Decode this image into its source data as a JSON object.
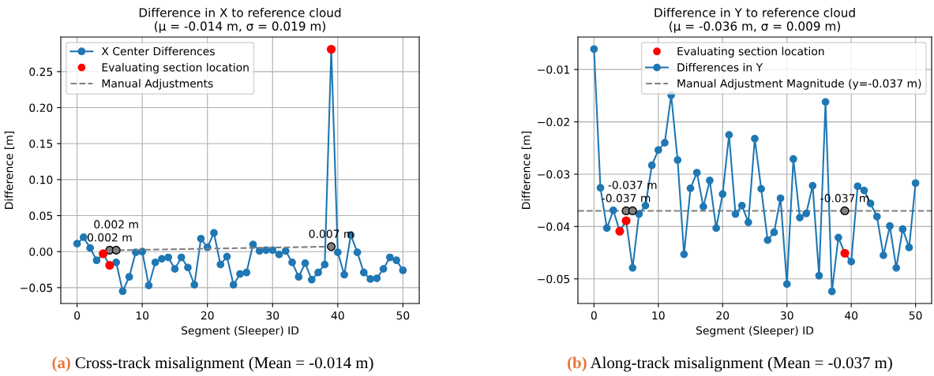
{
  "chart_data": [
    {
      "type": "line",
      "title": "Difference in X to reference cloud",
      "subtitle": "(μ = -0.014 m, σ = 0.019 m)",
      "xlabel": "Segment (Sleeper) ID",
      "ylabel": "Difference [m]",
      "series": [
        {
          "name": "X Center Differences",
          "type": "line",
          "color": "#1f77b4",
          "marker": "circle",
          "line_style": "solid",
          "x": [
            0,
            1,
            2,
            3,
            4,
            5,
            6,
            7,
            8,
            9,
            10,
            11,
            12,
            13,
            14,
            15,
            16,
            17,
            18,
            19,
            20,
            21,
            22,
            23,
            24,
            25,
            26,
            27,
            28,
            29,
            30,
            31,
            32,
            33,
            34,
            35,
            36,
            37,
            38,
            39,
            40,
            41,
            42,
            43,
            44,
            45,
            46,
            47,
            48,
            49,
            50
          ],
          "values": [
            0.011,
            0.02,
            0.005,
            -0.012,
            -0.003,
            -0.019,
            -0.015,
            -0.055,
            -0.035,
            -0.001,
            0.0,
            -0.047,
            -0.015,
            -0.01,
            -0.008,
            -0.024,
            -0.008,
            -0.022,
            -0.046,
            0.018,
            0.006,
            0.026,
            -0.018,
            -0.007,
            -0.046,
            -0.031,
            -0.029,
            0.01,
            0.001,
            0.002,
            0.002,
            -0.004,
            0.001,
            -0.015,
            -0.035,
            -0.016,
            -0.039,
            -0.029,
            -0.018,
            0.281,
            -0.001,
            -0.032,
            0.023,
            -0.001,
            -0.029,
            -0.038,
            -0.037,
            -0.024,
            -0.008,
            -0.012,
            -0.026
          ]
        },
        {
          "name": "Evaluating section location",
          "type": "scatter",
          "color": "#ff0000",
          "marker": "circle",
          "x": [
            4,
            5,
            39
          ],
          "values": [
            -0.003,
            -0.019,
            0.281
          ]
        },
        {
          "name": "Manual Adjustments",
          "type": "line",
          "color": "#808080",
          "marker": "circle",
          "line_style": "dashed",
          "x": [
            5,
            6,
            39
          ],
          "values": [
            0.002,
            0.002,
            0.007
          ]
        }
      ],
      "annotations": [
        {
          "text": "0.002 m",
          "x": 5,
          "y": 0.002
        },
        {
          "text": "0.002 m",
          "x": 6,
          "y": 0.002
        },
        {
          "text": "0.007 m",
          "x": 39,
          "y": 0.007
        },
        "(a)",
        "Cross-track misalignment (Mean = -0.014 m)"
      ],
      "xlim": [
        -2.5,
        52.5
      ],
      "xticks": [
        0,
        10,
        20,
        30,
        40,
        50
      ],
      "ylim": [
        -0.072,
        0.298
      ],
      "yticks": [
        {
          "value": -0.05,
          "label": "−0.05"
        },
        {
          "value": 0,
          "label": "0.00"
        },
        {
          "value": 0.05,
          "label": "0.05"
        },
        {
          "value": 0.1,
          "label": "0.10"
        },
        {
          "value": 0.15,
          "label": "0.15"
        },
        {
          "value": 0.2,
          "label": "0.20"
        },
        {
          "value": 0.25,
          "label": "0.25"
        }
      ],
      "grid": true,
      "legend": "top left"
    },
    {
      "type": "line",
      "title": "Difference in Y to reference cloud",
      "subtitle": "(μ = -0.036 m, σ = 0.009 m)",
      "xlabel": "Segment (Sleeper) ID",
      "ylabel": "Difference [m]",
      "series": [
        {
          "name": "Evaluating section location",
          "type": "scatter",
          "color": "#ff0000",
          "marker": "circle",
          "x": [
            4,
            5,
            39
          ],
          "values": [
            -0.0409,
            -0.0389,
            -0.0451
          ]
        },
        {
          "name": "Differences in Y",
          "type": "line",
          "color": "#1f77b4",
          "marker": "circle",
          "line_style": "solid",
          "x": [
            0,
            1,
            2,
            3,
            4,
            5,
            6,
            7,
            8,
            9,
            10,
            11,
            12,
            13,
            14,
            15,
            16,
            17,
            18,
            19,
            20,
            21,
            22,
            23,
            24,
            25,
            26,
            27,
            28,
            29,
            30,
            31,
            32,
            33,
            34,
            35,
            36,
            37,
            38,
            39,
            40,
            41,
            42,
            43,
            44,
            45,
            46,
            47,
            48,
            49,
            50
          ],
          "values": [
            -0.0061,
            -0.0326,
            -0.0403,
            -0.0369,
            -0.0409,
            -0.0389,
            -0.0479,
            -0.0376,
            -0.036,
            -0.0283,
            -0.0254,
            -0.024,
            -0.0149,
            -0.0273,
            -0.0453,
            -0.0327,
            -0.0297,
            -0.0362,
            -0.0312,
            -0.0403,
            -0.0338,
            -0.0225,
            -0.0376,
            -0.036,
            -0.0392,
            -0.0232,
            -0.0328,
            -0.0426,
            -0.0411,
            -0.0346,
            -0.051,
            -0.0271,
            -0.0383,
            -0.0375,
            -0.0322,
            -0.0494,
            -0.0162,
            -0.0524,
            -0.0421,
            -0.0451,
            -0.0467,
            -0.0323,
            -0.0331,
            -0.0356,
            -0.0381,
            -0.0455,
            -0.0399,
            -0.0479,
            -0.0405,
            -0.044,
            -0.0317
          ]
        },
        {
          "type": "scatter",
          "color": "#808080",
          "marker": "circle",
          "x": [
            5,
            6,
            39
          ],
          "values": [
            -0.037,
            -0.037,
            -0.037
          ]
        }
      ],
      "ref_lines": [
        {
          "axis": "y",
          "value": -0.037,
          "label": "Manual Adjustment Magnitude (y=-0.037 m)",
          "color": "#808080",
          "line_style": "dashed"
        }
      ],
      "annotations": [
        {
          "text": "-0.037 m",
          "x": 5,
          "y": -0.037
        },
        {
          "text": "-0.037 m",
          "x": 6,
          "y": -0.037
        },
        {
          "text": "-0.037 m",
          "x": 39,
          "y": -0.037
        },
        "(b)",
        "Along-track misalignment (Mean = -0.037 m)"
      ],
      "xlim": [
        -2.5,
        52.5
      ],
      "xticks": [
        0,
        10,
        20,
        30,
        40,
        50
      ],
      "ylim": [
        -0.0547,
        -0.0038
      ],
      "yticks": [
        {
          "value": -0.05,
          "label": "−0.05"
        },
        {
          "value": -0.04,
          "label": "−0.04"
        },
        {
          "value": -0.03,
          "label": "−0.03"
        },
        {
          "value": -0.02,
          "label": "−0.02"
        },
        {
          "value": -0.01,
          "label": "−0.01"
        }
      ],
      "grid": true,
      "legend": "top right"
    }
  ]
}
